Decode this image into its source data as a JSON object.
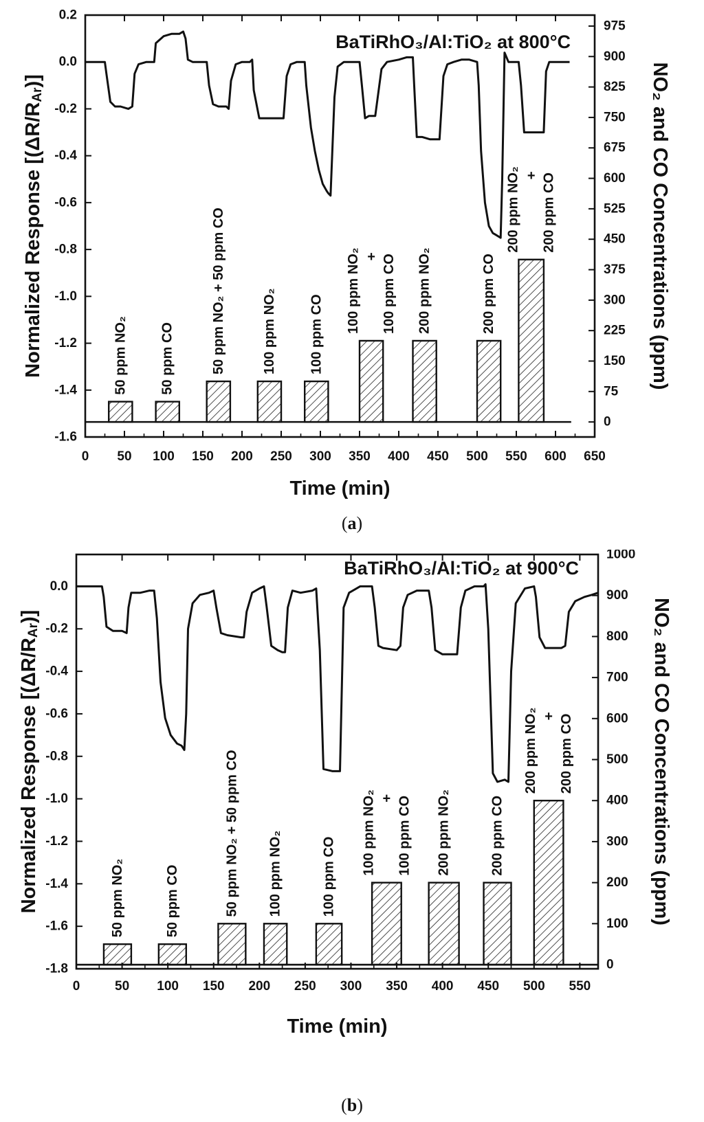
{
  "chart_data": [
    {
      "panel": "a",
      "type": "line",
      "title": "BaTiRhO₃/Al:TiO₂ at 800°C",
      "xlabel": "Time (min)",
      "ylabel": "Normalized Response [(ΔR/R",
      "ylabel_sub": "Ar",
      "ylabel_end": ")]",
      "y2label": "NO₂ and CO Concentrations (ppm)",
      "caption": "(a)",
      "caption_open": "(",
      "caption_letter": "a",
      "caption_close": ")",
      "xlim": [
        0,
        650
      ],
      "ylim": [
        -1.6,
        0.2
      ],
      "y2lim": [
        -37,
        1002
      ],
      "xticks": [
        0,
        50,
        100,
        150,
        200,
        250,
        300,
        350,
        400,
        450,
        500,
        550,
        600,
        650
      ],
      "yticks": [
        0.2,
        0.0,
        -0.2,
        -0.4,
        -0.6,
        -0.8,
        -1.0,
        -1.2,
        -1.4,
        -1.6
      ],
      "yticklabels": [
        "0.2",
        "0.0",
        "-0.2",
        "-0.4",
        "-0.6",
        "-0.8",
        "-1.0",
        "-1.2",
        "-1.4",
        "-1.6"
      ],
      "y2ticks": [
        0,
        75,
        150,
        225,
        300,
        375,
        450,
        525,
        600,
        675,
        750,
        825,
        900,
        975
      ],
      "series": [
        {
          "kind": "response",
          "x": [
            0,
            25,
            27,
            32,
            38,
            45,
            55,
            60,
            63,
            68,
            78,
            85,
            88,
            90,
            100,
            110,
            120,
            125,
            128,
            131,
            137,
            145,
            150,
            155,
            158,
            163,
            170,
            180,
            183,
            186,
            192,
            200,
            210,
            213,
            215,
            222,
            227,
            240,
            245,
            250,
            253,
            257,
            262,
            270,
            280,
            282,
            288,
            293,
            298,
            303,
            308,
            310,
            313,
            318,
            322,
            330,
            338,
            350,
            353,
            357,
            362,
            370,
            378,
            385,
            400,
            410,
            418,
            420,
            423,
            430,
            440,
            450,
            452,
            457,
            462,
            470,
            480,
            485,
            490,
            500,
            502,
            505,
            510,
            515,
            520,
            525,
            530,
            532,
            535,
            540,
            548,
            553,
            556,
            560,
            570,
            580,
            585,
            588,
            592,
            598,
            610,
            618
          ],
          "y": [
            0.0,
            0.0,
            -0.05,
            -0.17,
            -0.19,
            -0.19,
            -0.2,
            -0.19,
            -0.05,
            -0.01,
            0.0,
            0.0,
            0.0,
            0.08,
            0.11,
            0.12,
            0.12,
            0.13,
            0.1,
            0.01,
            0.0,
            0.0,
            0.0,
            0.0,
            -0.1,
            -0.18,
            -0.19,
            -0.19,
            -0.2,
            -0.08,
            -0.01,
            0.0,
            0.0,
            0.01,
            -0.12,
            -0.24,
            -0.24,
            -0.24,
            -0.24,
            -0.24,
            -0.24,
            -0.06,
            -0.01,
            0.0,
            0.0,
            -0.1,
            -0.28,
            -0.38,
            -0.46,
            -0.52,
            -0.55,
            -0.56,
            -0.57,
            -0.15,
            -0.02,
            0.0,
            0.0,
            0.0,
            -0.1,
            -0.24,
            -0.23,
            -0.23,
            -0.03,
            0.0,
            0.01,
            0.02,
            0.02,
            -0.12,
            -0.32,
            -0.32,
            -0.33,
            -0.33,
            -0.33,
            -0.06,
            -0.01,
            0.0,
            0.01,
            0.01,
            0.01,
            0.0,
            -0.1,
            -0.38,
            -0.6,
            -0.7,
            -0.73,
            -0.74,
            -0.75,
            -0.5,
            0.04,
            0.0,
            0.0,
            0.0,
            -0.1,
            -0.3,
            -0.3,
            -0.3,
            -0.3,
            -0.04,
            0.0,
            0.0,
            0.0,
            0.0
          ]
        },
        {
          "kind": "concentration",
          "name": "",
          "bars": [
            {
              "start": 30,
              "end": 60,
              "ppm": 50,
              "label": "50 ppm NO₂"
            },
            {
              "start": 90,
              "end": 120,
              "ppm": 50,
              "label": "50 ppm CO"
            },
            {
              "start": 155,
              "end": 185,
              "ppm": 100,
              "label": "50 ppm NO₂ + 50 ppm CO"
            },
            {
              "start": 220,
              "end": 250,
              "ppm": 100,
              "label": "100 ppm NO₂"
            },
            {
              "start": 280,
              "end": 310,
              "ppm": 100,
              "label": "100 ppm CO"
            },
            {
              "start": 350,
              "end": 380,
              "ppm": 200,
              "label": "100 ppm NO₂",
              "label2": "+",
              "label3": "100 ppm CO"
            },
            {
              "start": 418,
              "end": 448,
              "ppm": 200,
              "label": "200 ppm NO₂"
            },
            {
              "start": 500,
              "end": 530,
              "ppm": 200,
              "label": "200 ppm CO"
            },
            {
              "start": 553,
              "end": 585,
              "ppm": 400,
              "label": "200 ppm NO₂",
              "label2": "+",
              "label3": "200 ppm CO"
            }
          ],
          "baseline_end": 620
        }
      ]
    },
    {
      "panel": "b",
      "type": "line",
      "title": "BaTiRhO₃/Al:TiO₂ at 900°C",
      "xlabel": "Time (min)",
      "ylabel": "Normalized Response [(ΔR/R",
      "ylabel_sub": "Ar",
      "ylabel_end": ")]",
      "y2label": "NO₂ and CO Concentrations (ppm)",
      "caption": "(b)",
      "caption_open": "(",
      "caption_letter": "b",
      "caption_close": ")",
      "xlim": [
        0,
        570
      ],
      "ylim": [
        -1.8,
        0.15
      ],
      "y2lim": [
        -10,
        1000
      ],
      "xticks": [
        0,
        50,
        100,
        150,
        200,
        250,
        300,
        350,
        400,
        450,
        500,
        550
      ],
      "yticks": [
        0.0,
        -0.2,
        -0.4,
        -0.6,
        -0.8,
        -1.0,
        -1.2,
        -1.4,
        -1.6,
        -1.8
      ],
      "yticklabels": [
        "0.0",
        "-0.2",
        "-0.4",
        "-0.6",
        "-0.8",
        "-1.0",
        "-1.2",
        "-1.4",
        "-1.6",
        "-1.8"
      ],
      "y2ticks": [
        0,
        100,
        200,
        300,
        400,
        500,
        600,
        700,
        800,
        900,
        1000
      ],
      "series": [
        {
          "kind": "response",
          "x": [
            0,
            28,
            30,
            33,
            40,
            50,
            55,
            57,
            60,
            70,
            80,
            85,
            88,
            92,
            97,
            103,
            110,
            115,
            118,
            120,
            122,
            127,
            135,
            145,
            150,
            153,
            158,
            165,
            180,
            183,
            186,
            192,
            200,
            205,
            208,
            213,
            220,
            225,
            228,
            231,
            236,
            245,
            258,
            262,
            266,
            270,
            280,
            285,
            288,
            292,
            298,
            310,
            323,
            326,
            330,
            335,
            350,
            354,
            357,
            362,
            372,
            385,
            388,
            392,
            400,
            412,
            416,
            420,
            425,
            435,
            445,
            447,
            450,
            455,
            460,
            468,
            472,
            475,
            480,
            490,
            500,
            502,
            506,
            512,
            520,
            530,
            534,
            538,
            545,
            555,
            563,
            570
          ],
          "y": [
            0.0,
            0.0,
            -0.05,
            -0.19,
            -0.21,
            -0.21,
            -0.22,
            -0.1,
            -0.03,
            -0.03,
            -0.02,
            -0.02,
            -0.15,
            -0.45,
            -0.62,
            -0.7,
            -0.74,
            -0.75,
            -0.77,
            -0.6,
            -0.2,
            -0.08,
            -0.04,
            -0.03,
            -0.02,
            -0.1,
            -0.22,
            -0.23,
            -0.24,
            -0.24,
            -0.12,
            -0.03,
            -0.01,
            0.0,
            -0.1,
            -0.28,
            -0.3,
            -0.31,
            -0.31,
            -0.1,
            -0.02,
            -0.03,
            -0.02,
            -0.01,
            -0.3,
            -0.86,
            -0.87,
            -0.87,
            -0.87,
            -0.1,
            -0.03,
            0.0,
            0.0,
            -0.1,
            -0.28,
            -0.29,
            -0.3,
            -0.28,
            -0.1,
            -0.04,
            -0.02,
            -0.02,
            -0.1,
            -0.3,
            -0.32,
            -0.32,
            -0.32,
            -0.1,
            -0.02,
            0.0,
            0.0,
            0.01,
            -0.2,
            -0.88,
            -0.92,
            -0.91,
            -0.92,
            -0.4,
            -0.08,
            -0.01,
            0.0,
            -0.05,
            -0.24,
            -0.29,
            -0.29,
            -0.29,
            -0.28,
            -0.12,
            -0.07,
            -0.05,
            -0.04,
            -0.03
          ]
        },
        {
          "kind": "concentration",
          "name": "",
          "bars": [
            {
              "start": 30,
              "end": 60,
              "ppm": 50,
              "label": "50 ppm NO₂"
            },
            {
              "start": 90,
              "end": 120,
              "ppm": 50,
              "label": "50 ppm CO"
            },
            {
              "start": 155,
              "end": 185,
              "ppm": 100,
              "label": "50 ppm NO₂ + 50 ppm CO"
            },
            {
              "start": 205,
              "end": 230,
              "ppm": 100,
              "label": "100 ppm NO₂"
            },
            {
              "start": 262,
              "end": 290,
              "ppm": 100,
              "label": "100 ppm CO"
            },
            {
              "start": 323,
              "end": 355,
              "ppm": 200,
              "label": "100 ppm NO₂",
              "label2": "+",
              "label3": "100 ppm CO"
            },
            {
              "start": 385,
              "end": 418,
              "ppm": 200,
              "label": "200 ppm NO₂"
            },
            {
              "start": 445,
              "end": 475,
              "ppm": 200,
              "label": "200 ppm CO"
            },
            {
              "start": 500,
              "end": 532,
              "ppm": 400,
              "label": "200 ppm NO₂",
              "label2": "+",
              "label3": "200 ppm CO"
            }
          ],
          "baseline_end": 570
        }
      ]
    }
  ]
}
